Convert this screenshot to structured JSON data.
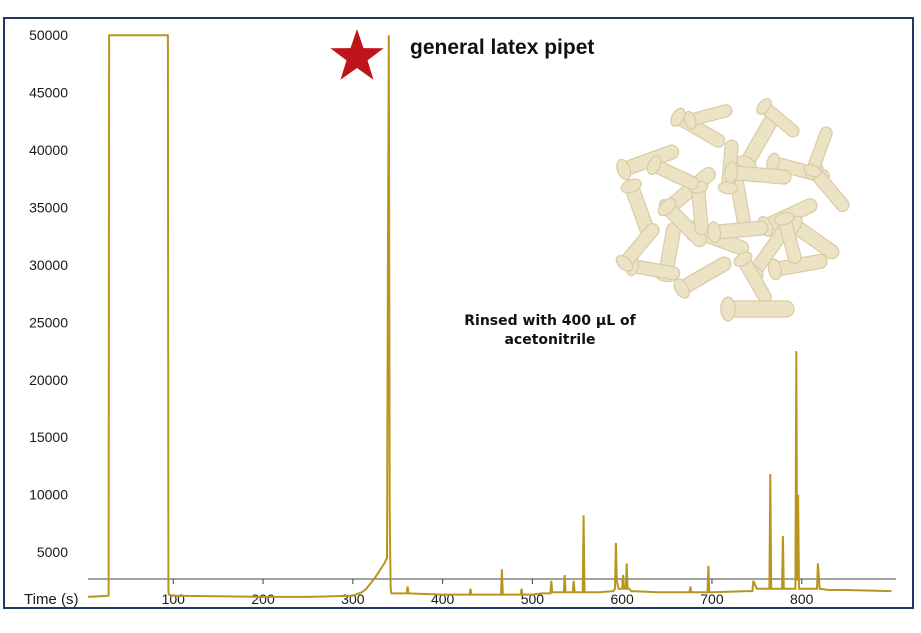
{
  "chart_data": {
    "type": "line",
    "title": "",
    "xlabel": "Time (s)",
    "ylabel": "",
    "xlim": [
      5,
      905
    ],
    "ylim": [
      1000,
      51500
    ],
    "x_ticks": [
      100,
      200,
      300,
      400,
      500,
      600,
      700,
      800
    ],
    "y_ticks": [
      5000,
      10000,
      15000,
      20000,
      25000,
      30000,
      35000,
      40000,
      45000,
      50000
    ],
    "grid": false,
    "legend": "none",
    "line_color": "#b8961e",
    "series": [
      {
        "x": [
          5,
          28,
          28.5,
          29,
          94,
          94.5,
          95,
          100,
          150,
          200,
          250,
          300,
          310,
          315,
          320,
          325,
          330,
          335,
          338,
          339,
          340,
          341,
          342,
          343,
          345,
          350,
          360,
          361,
          362,
          400,
          430,
          431,
          432,
          450,
          465,
          466,
          467,
          470,
          487,
          488,
          489,
          500,
          510,
          520,
          521,
          522,
          530,
          535,
          536,
          537,
          545,
          546,
          547,
          553,
          556,
          557,
          558,
          560,
          575,
          590,
          592,
          593,
          594,
          596,
          600,
          601,
          602,
          604,
          605,
          606,
          608,
          610,
          640,
          660,
          675,
          676,
          677,
          680,
          695,
          696,
          697,
          700,
          740,
          745,
          746,
          750,
          760,
          764,
          765,
          766,
          768,
          775,
          778,
          779,
          780,
          782,
          790,
          793,
          794,
          795,
          796,
          797,
          800,
          815,
          817,
          818,
          820,
          830,
          850,
          900
        ],
        "y": [
          1100,
          1200,
          50000,
          50000,
          50000,
          1800,
          1300,
          1200,
          1150,
          1100,
          1100,
          1200,
          1500,
          1800,
          2300,
          2800,
          3400,
          4000,
          4500,
          30000,
          50000,
          8500,
          2000,
          1400,
          1400,
          1400,
          1400,
          2000,
          1400,
          1300,
          1300,
          1800,
          1300,
          1300,
          1300,
          3500,
          1300,
          1300,
          1300,
          1800,
          1300,
          1300,
          1400,
          1400,
          2500,
          1500,
          1500,
          1500,
          3000,
          1500,
          1500,
          2500,
          1500,
          1500,
          1500,
          8200,
          1500,
          1500,
          1500,
          1600,
          1800,
          5800,
          2500,
          1800,
          1800,
          3000,
          1800,
          1800,
          4000,
          1800,
          1800,
          1600,
          1500,
          1500,
          1500,
          2000,
          1500,
          1500,
          1500,
          3800,
          1500,
          1500,
          1600,
          1600,
          2500,
          1800,
          1800,
          1800,
          11800,
          1800,
          1800,
          1800,
          1800,
          6400,
          1800,
          1800,
          1800,
          1800,
          22500,
          2500,
          10000,
          1800,
          1800,
          1800,
          1800,
          4000,
          1800,
          1700,
          1700,
          1600
        ]
      }
    ],
    "annotations": [
      {
        "text": "general latex pipet"
      },
      {
        "text_lines": [
          "Rinsed with 400 µL of",
          "acetonitrile"
        ]
      }
    ]
  },
  "legend_graphics": {
    "star_color": "#c0141a",
    "pipet_color": "#ece2c4",
    "pipet_shade": "#d8cba6"
  }
}
